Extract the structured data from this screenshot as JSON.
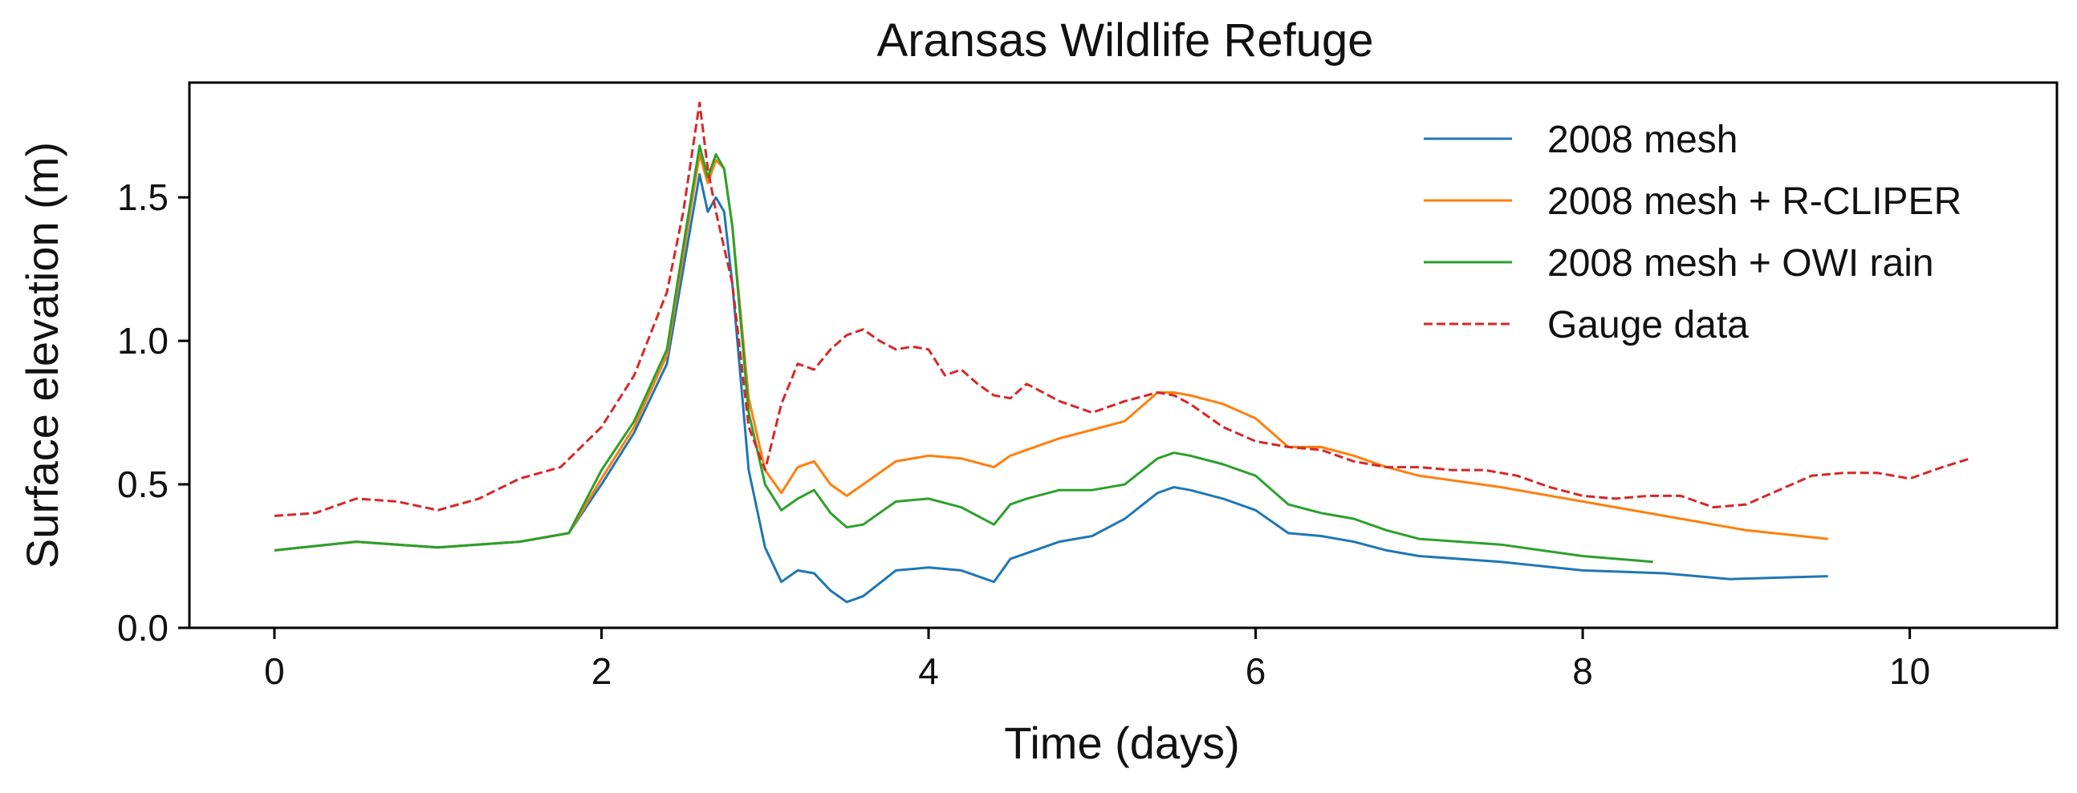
{
  "chart_data": {
    "type": "line",
    "title": "Aransas Wildlife Refuge",
    "xlabel": "Time (days)",
    "ylabel": "Surface elevation (m)",
    "xlim": [
      -0.52,
      10.9
    ],
    "ylim": [
      0.0,
      1.9
    ],
    "xticks": [
      0,
      2,
      4,
      6,
      8,
      10
    ],
    "xtick_labels": [
      "0",
      "2",
      "4",
      "6",
      "8",
      "10"
    ],
    "yticks": [
      0.0,
      0.5,
      1.0,
      1.5
    ],
    "ytick_labels": [
      "0.0",
      "0.5",
      "1.0",
      "1.5"
    ],
    "grid": false,
    "legend_position": "top-right",
    "series": [
      {
        "name": "2008 mesh",
        "color": "#1f77b4",
        "dash": "solid",
        "x": [
          0,
          0.5,
          1.0,
          1.5,
          1.8,
          2.0,
          2.2,
          2.4,
          2.5,
          2.6,
          2.65,
          2.7,
          2.75,
          2.8,
          2.9,
          3.0,
          3.1,
          3.2,
          3.3,
          3.4,
          3.5,
          3.6,
          3.8,
          4.0,
          4.2,
          4.4,
          4.5,
          4.6,
          4.8,
          5.0,
          5.2,
          5.4,
          5.5,
          5.6,
          5.8,
          6.0,
          6.2,
          6.4,
          6.6,
          6.8,
          7.0,
          7.5,
          8.0,
          8.5,
          8.9,
          9.2,
          9.5
        ],
        "values": [
          0.27,
          0.3,
          0.28,
          0.3,
          0.33,
          0.5,
          0.68,
          0.92,
          1.25,
          1.58,
          1.45,
          1.5,
          1.45,
          1.2,
          0.55,
          0.28,
          0.16,
          0.2,
          0.19,
          0.13,
          0.09,
          0.11,
          0.2,
          0.21,
          0.2,
          0.16,
          0.24,
          0.26,
          0.3,
          0.32,
          0.38,
          0.47,
          0.49,
          0.48,
          0.45,
          0.41,
          0.33,
          0.32,
          0.3,
          0.27,
          0.25,
          0.23,
          0.2,
          0.19,
          0.17,
          0.175,
          0.18
        ]
      },
      {
        "name": "2008 mesh + R-CLIPER",
        "color": "#ff7f0e",
        "dash": "solid",
        "x": [
          0,
          0.5,
          1.0,
          1.5,
          1.8,
          2.0,
          2.2,
          2.4,
          2.5,
          2.6,
          2.65,
          2.7,
          2.75,
          2.8,
          2.9,
          3.0,
          3.1,
          3.2,
          3.3,
          3.4,
          3.5,
          3.6,
          3.8,
          4.0,
          4.2,
          4.4,
          4.5,
          4.6,
          4.8,
          5.0,
          5.2,
          5.4,
          5.5,
          5.6,
          5.8,
          6.0,
          6.2,
          6.4,
          6.6,
          6.8,
          7.0,
          7.5,
          8.0,
          8.5,
          9.0,
          9.5
        ],
        "values": [
          0.27,
          0.3,
          0.28,
          0.3,
          0.33,
          0.52,
          0.7,
          0.95,
          1.3,
          1.65,
          1.55,
          1.63,
          1.6,
          1.4,
          0.8,
          0.55,
          0.47,
          0.56,
          0.58,
          0.5,
          0.46,
          0.5,
          0.58,
          0.6,
          0.59,
          0.56,
          0.6,
          0.62,
          0.66,
          0.69,
          0.72,
          0.82,
          0.82,
          0.81,
          0.78,
          0.73,
          0.63,
          0.63,
          0.6,
          0.56,
          0.53,
          0.49,
          0.44,
          0.39,
          0.34,
          0.31
        ]
      },
      {
        "name": "2008 mesh + OWI rain",
        "color": "#2ca02c",
        "dash": "solid",
        "x": [
          0,
          0.5,
          1.0,
          1.5,
          1.8,
          2.0,
          2.2,
          2.4,
          2.5,
          2.6,
          2.65,
          2.7,
          2.75,
          2.8,
          2.9,
          3.0,
          3.1,
          3.2,
          3.3,
          3.4,
          3.5,
          3.6,
          3.8,
          4.0,
          4.2,
          4.4,
          4.5,
          4.6,
          4.8,
          5.0,
          5.2,
          5.4,
          5.5,
          5.6,
          5.8,
          6.0,
          6.2,
          6.4,
          6.6,
          6.8,
          7.0,
          7.5,
          8.0,
          8.43
        ],
        "values": [
          0.27,
          0.3,
          0.28,
          0.3,
          0.33,
          0.55,
          0.72,
          0.97,
          1.33,
          1.68,
          1.57,
          1.65,
          1.6,
          1.4,
          0.75,
          0.5,
          0.41,
          0.45,
          0.48,
          0.4,
          0.35,
          0.36,
          0.44,
          0.45,
          0.42,
          0.36,
          0.43,
          0.45,
          0.48,
          0.48,
          0.5,
          0.59,
          0.61,
          0.6,
          0.57,
          0.53,
          0.43,
          0.4,
          0.38,
          0.34,
          0.31,
          0.29,
          0.25,
          0.23
        ]
      },
      {
        "name": "Gauge data",
        "color": "#d62728",
        "dash": "dashed",
        "x": [
          0,
          0.25,
          0.5,
          0.75,
          1.0,
          1.25,
          1.5,
          1.75,
          2.0,
          2.2,
          2.4,
          2.5,
          2.6,
          2.65,
          2.7,
          2.8,
          2.9,
          3.0,
          3.1,
          3.2,
          3.3,
          3.4,
          3.5,
          3.6,
          3.7,
          3.8,
          3.9,
          4.0,
          4.1,
          4.2,
          4.3,
          4.4,
          4.5,
          4.6,
          4.7,
          4.8,
          5.0,
          5.2,
          5.4,
          5.5,
          5.6,
          5.8,
          6.0,
          6.2,
          6.4,
          6.6,
          6.8,
          7.0,
          7.2,
          7.4,
          7.6,
          7.8,
          8.0,
          8.2,
          8.4,
          8.6,
          8.8,
          9.0,
          9.2,
          9.4,
          9.6,
          9.8,
          10.0,
          10.2,
          10.37
        ],
        "values": [
          0.39,
          0.4,
          0.45,
          0.44,
          0.41,
          0.45,
          0.52,
          0.56,
          0.7,
          0.88,
          1.17,
          1.45,
          1.83,
          1.6,
          1.45,
          1.2,
          0.7,
          0.55,
          0.78,
          0.92,
          0.9,
          0.97,
          1.02,
          1.04,
          1.0,
          0.97,
          0.98,
          0.97,
          0.88,
          0.9,
          0.85,
          0.81,
          0.8,
          0.85,
          0.82,
          0.79,
          0.75,
          0.79,
          0.82,
          0.81,
          0.78,
          0.7,
          0.65,
          0.63,
          0.62,
          0.58,
          0.56,
          0.56,
          0.55,
          0.55,
          0.53,
          0.49,
          0.46,
          0.45,
          0.46,
          0.46,
          0.42,
          0.43,
          0.48,
          0.53,
          0.54,
          0.54,
          0.52,
          0.56,
          0.59
        ]
      }
    ]
  }
}
